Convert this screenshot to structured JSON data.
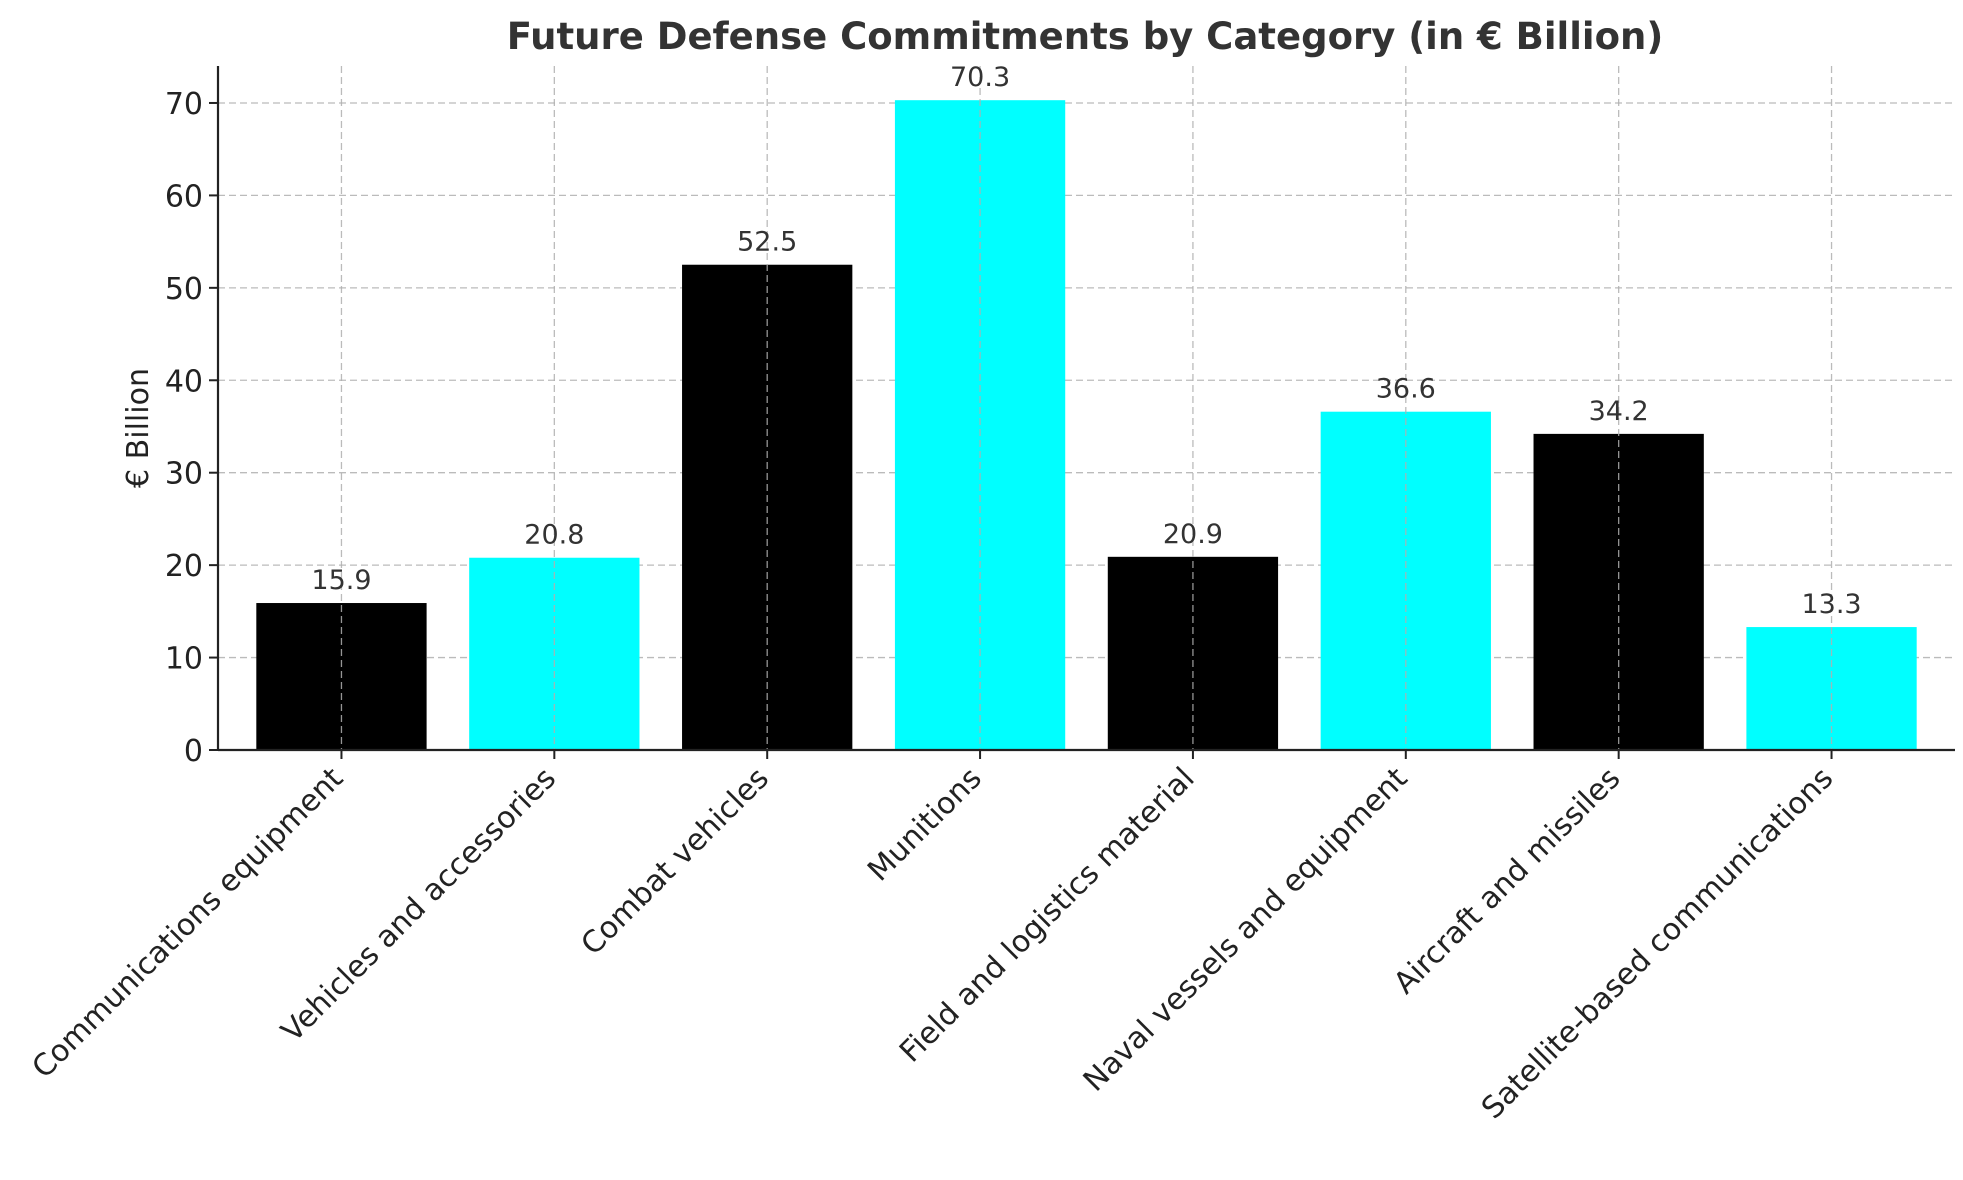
{
  "chart_data": {
    "type": "bar",
    "title": "Future Defense Commitments by Category (in € Billion)",
    "xlabel": "",
    "ylabel": "€ Billion",
    "ylim": [
      0,
      74
    ],
    "yticks": [
      0,
      10,
      20,
      30,
      40,
      50,
      60,
      70
    ],
    "grid": true,
    "categories": [
      "Communications equipment",
      "Vehicles and accessories",
      "Combat vehicles",
      "Munitions",
      "Field and logistics material",
      "Naval vessels and equipment",
      "Aircraft and missiles",
      "Satellite-based communications"
    ],
    "values": [
      15.9,
      20.8,
      52.5,
      70.3,
      20.9,
      36.6,
      34.2,
      13.3
    ],
    "data_labels": [
      "15.9",
      "20.8",
      "52.5",
      "70.3",
      "20.9",
      "36.6",
      "34.2",
      "13.3"
    ],
    "bar_colors": [
      "#000000",
      "#00ffff",
      "#000000",
      "#00ffff",
      "#000000",
      "#00ffff",
      "#000000",
      "#00ffff"
    ]
  }
}
